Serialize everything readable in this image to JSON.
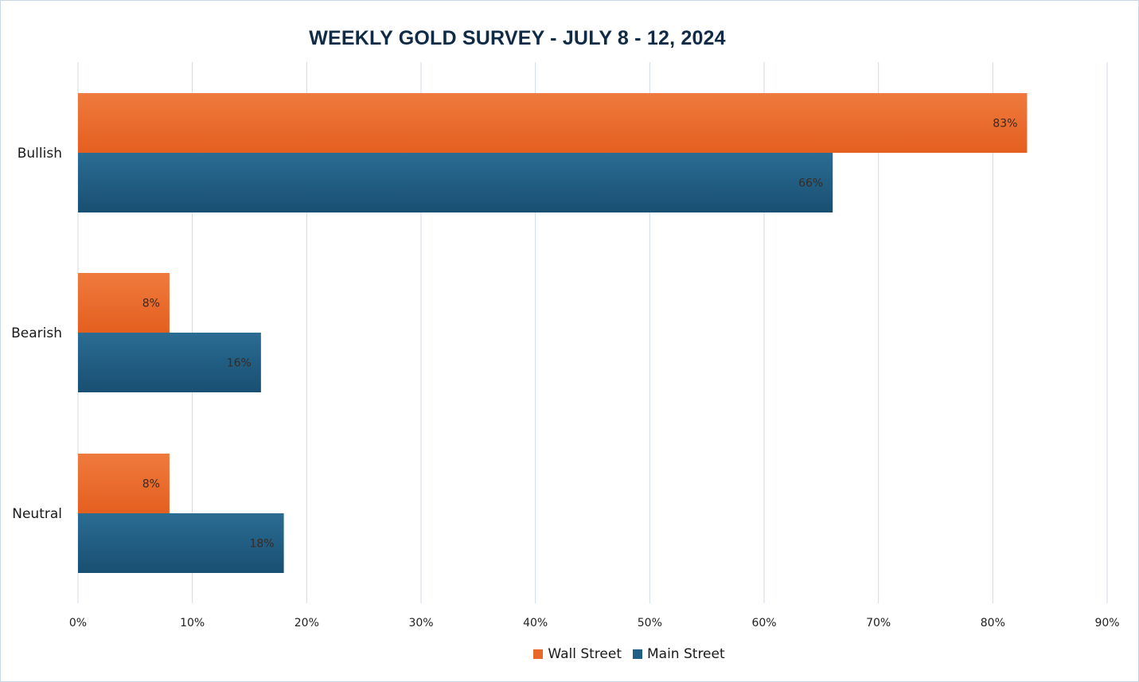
{
  "chart_data": {
    "type": "bar",
    "orientation": "horizontal",
    "title": "WEEKLY GOLD SURVEY - JULY 8 - 12, 2024",
    "categories": [
      "Bullish",
      "Bearish",
      "Neutral"
    ],
    "series": [
      {
        "name": "Wall Street",
        "color": "#e8682a",
        "values": [
          83,
          8,
          8
        ],
        "labels": [
          "83%",
          "8%",
          "8%"
        ]
      },
      {
        "name": "Main Street",
        "color": "#1f5f86",
        "values": [
          66,
          16,
          18
        ],
        "labels": [
          "66%",
          "16%",
          "18%"
        ]
      }
    ],
    "xlim": [
      0,
      90
    ],
    "x_ticks": [
      0,
      10,
      20,
      30,
      40,
      50,
      60,
      70,
      80,
      90
    ],
    "x_tick_labels": [
      "0%",
      "10%",
      "20%",
      "30%",
      "40%",
      "50%",
      "60%",
      "70%",
      "80%",
      "90%"
    ],
    "grid": true,
    "legend_position": "bottom"
  }
}
